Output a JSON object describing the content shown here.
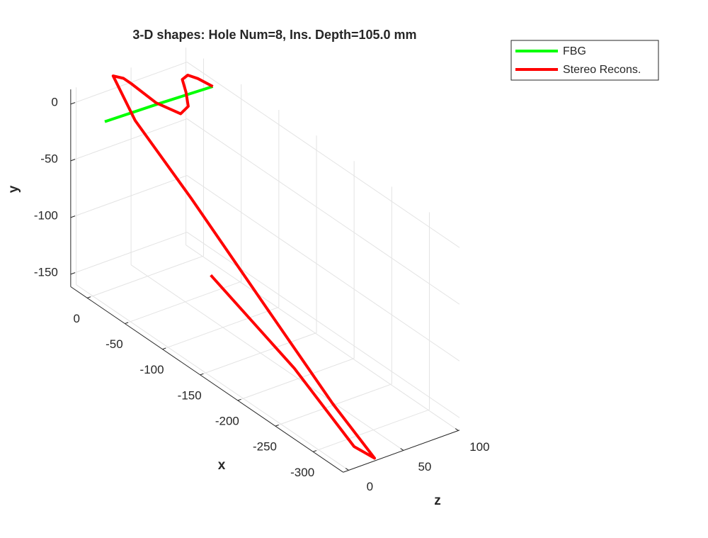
{
  "chart_data": {
    "type": "line3d",
    "title": "3-D shapes: Hole Num=8, Ins. Depth=105.0 mm",
    "xlabel": "x",
    "ylabel": "y",
    "zlabel": "z",
    "xlim": [
      -340,
      22
    ],
    "ylim": [
      -161,
      13
    ],
    "zlim": [
      -5,
      101
    ],
    "xticks": [
      0,
      -50,
      -100,
      -150,
      -200,
      -250,
      -300
    ],
    "yticks": [
      0,
      -50,
      -100,
      -150
    ],
    "zticks": [
      0,
      50,
      100
    ],
    "grid": true,
    "legend": "top-right",
    "series": [
      {
        "name": "FBG",
        "color": "#00ff00",
        "x": [
          -16,
          -18,
          -21
        ],
        "y": [
          0,
          0,
          0
        ],
        "z": [
          0,
          47,
          95
        ]
      },
      {
        "name": "Stereo Recons.",
        "color": "#ff0000",
        "x": [
          -116,
          -230,
          -321,
          -338,
          -300,
          -211,
          -96,
          -17,
          21,
          19,
          13,
          -23,
          -41,
          -35,
          -16,
          2,
          5,
          -4,
          -21
        ],
        "y": [
          -100,
          -130,
          -155,
          -160,
          -125,
          -85,
          -40,
          -8,
          12,
          8,
          5,
          5,
          0,
          0,
          0,
          0,
          0,
          0,
          0
        ],
        "z": [
          28,
          26,
          18,
          25,
          13,
          16,
          24,
          27,
          33,
          41,
          44,
          42,
          52,
          63,
          74,
          83,
          90,
          93,
          95
        ]
      }
    ]
  }
}
